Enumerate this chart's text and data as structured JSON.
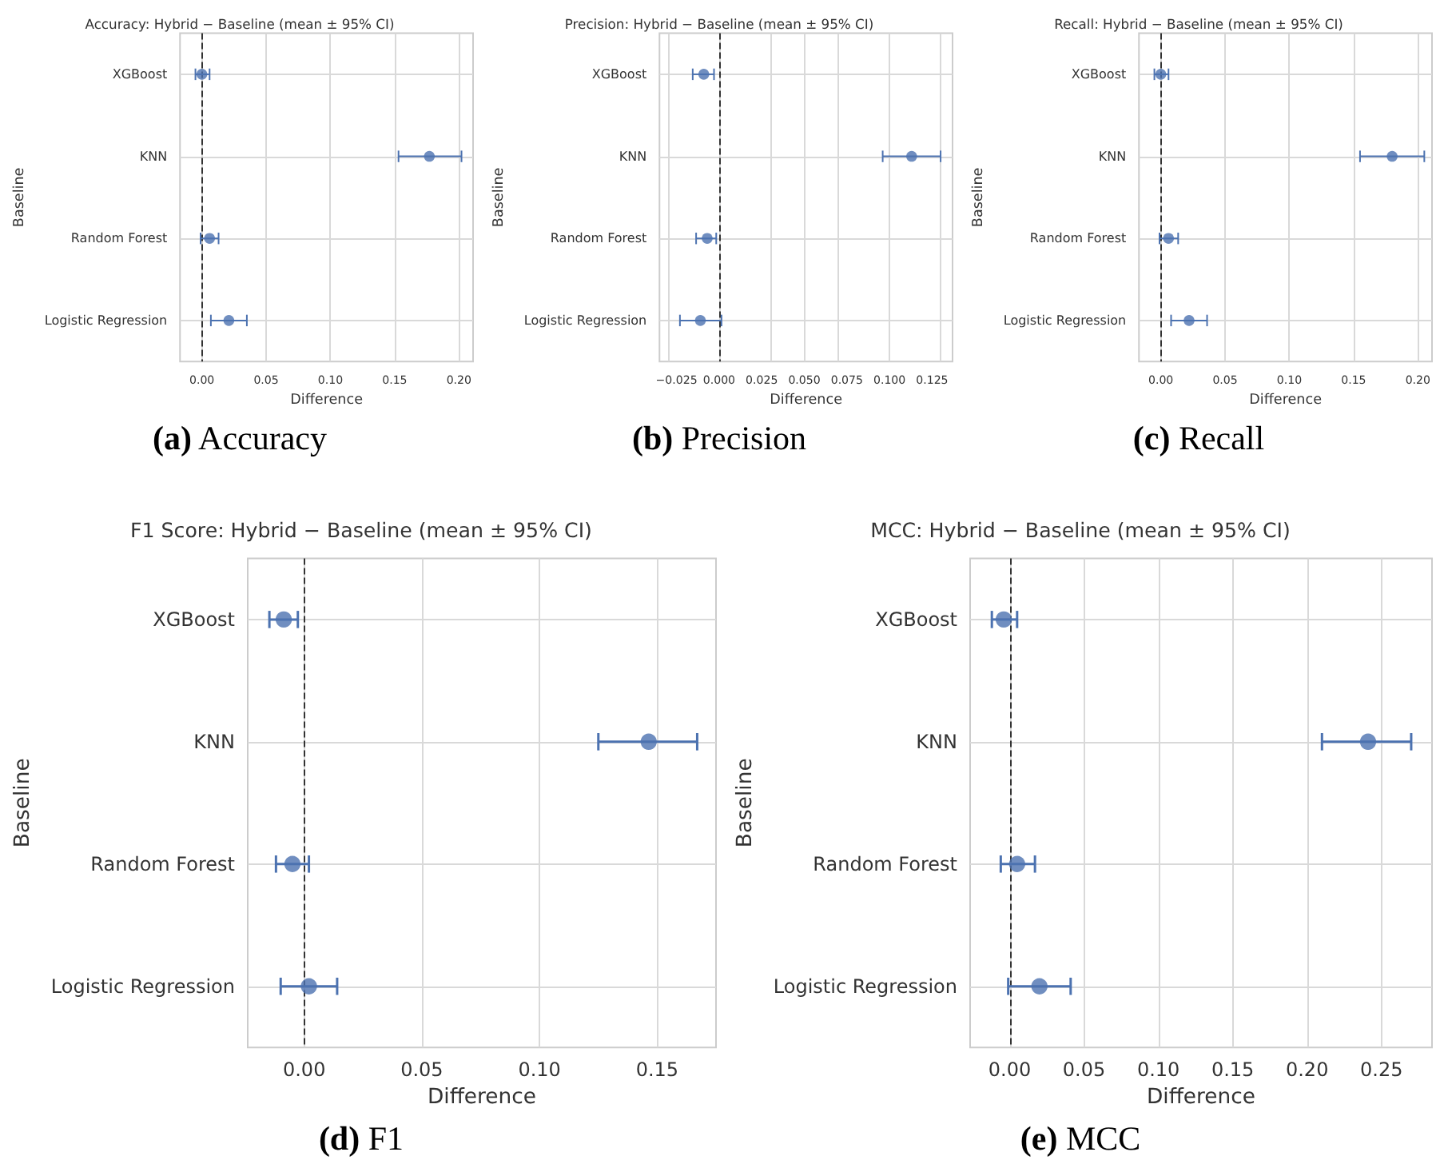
{
  "chart_data": [
    {
      "type": "scatter",
      "orientation": "horizontal",
      "title": "Accuracy: Hybrid − Baseline (mean ± 95% CI)",
      "xlabel": "Difference",
      "ylabel": "Baseline",
      "annotations": [
        "(a) Accuracy"
      ],
      "categories": [
        "XGBoost",
        "KNN",
        "Random Forest",
        "Logistic Regression"
      ],
      "values": [
        0.0,
        0.177,
        0.006,
        0.021
      ],
      "errors": [
        [
          -0.005,
          0.006
        ],
        [
          0.153,
          0.202
        ],
        [
          -0.001,
          0.013
        ],
        [
          0.007,
          0.035
        ]
      ],
      "color": "#4c72b0",
      "marker": "circle",
      "grid": true,
      "xlim": [
        -0.017,
        0.211
      ],
      "xticks": [
        {
          "value": 0,
          "label": "0.00"
        },
        0.05,
        {
          "value": 0.1,
          "label": "0.10"
        },
        0.15,
        {
          "value": 0.2,
          "label": "0.20"
        }
      ],
      "ref_lines": [
        {
          "axis": "x",
          "value": 0,
          "color": "#333333",
          "line_style": "dashed"
        }
      ]
    },
    {
      "type": "scatter",
      "orientation": "horizontal",
      "title": "Precision: Hybrid − Baseline (mean ± 95% CI)",
      "xlabel": "Difference",
      "ylabel": "Baseline",
      "annotations": [
        "(b) Precision"
      ],
      "categories": [
        "XGBoost",
        "KNN",
        "Random Forest",
        "Logistic Regression"
      ],
      "values": [
        -0.009,
        0.113,
        -0.007,
        -0.011
      ],
      "errors": [
        [
          -0.0155,
          -0.003
        ],
        [
          0.096,
          0.13
        ],
        [
          -0.0135,
          -0.0017
        ],
        [
          -0.023,
          0.0014
        ]
      ],
      "color": "#4c72b0",
      "marker": "circle",
      "grid": true,
      "xlim": [
        -0.035,
        0.137
      ],
      "xticks": [
        {
          "value": -0.025,
          "label": "−0.025"
        },
        {
          "value": 0,
          "label": "0.000"
        },
        0.025,
        {
          "value": 0.05,
          "label": "0.050"
        },
        0.075,
        {
          "value": 0.1,
          "label": "0.100"
        },
        0.125
      ],
      "ref_lines": [
        {
          "axis": "x",
          "value": 0,
          "color": "#333333",
          "line_style": "dashed"
        }
      ]
    },
    {
      "type": "scatter",
      "orientation": "horizontal",
      "title": "Recall: Hybrid − Baseline (mean ± 95% CI)",
      "xlabel": "Difference",
      "ylabel": "Baseline",
      "annotations": [
        "(c) Recall"
      ],
      "categories": [
        "XGBoost",
        "KNN",
        "Random Forest",
        "Logistic Regression"
      ],
      "values": [
        0.0,
        0.18,
        0.006,
        0.022
      ],
      "errors": [
        [
          -0.005,
          0.006
        ],
        [
          0.155,
          0.205
        ],
        [
          -0.001,
          0.0135
        ],
        [
          0.008,
          0.036
        ]
      ],
      "color": "#4c72b0",
      "marker": "circle",
      "grid": true,
      "xlim": [
        -0.017,
        0.211
      ],
      "xticks": [
        {
          "value": 0,
          "label": "0.00"
        },
        0.05,
        {
          "value": 0.1,
          "label": "0.10"
        },
        0.15,
        {
          "value": 0.2,
          "label": "0.20"
        }
      ],
      "ref_lines": [
        {
          "axis": "x",
          "value": 0,
          "color": "#333333",
          "line_style": "dashed"
        }
      ]
    },
    {
      "type": "scatter",
      "orientation": "horizontal",
      "title": "F1 Score: Hybrid − Baseline (mean ± 95% CI)",
      "xlabel": "Difference",
      "ylabel": "Baseline",
      "annotations": [
        "(d) F1"
      ],
      "categories": [
        "XGBoost",
        "KNN",
        "Random Forest",
        "Logistic Regression"
      ],
      "values": [
        -0.0087,
        0.1464,
        -0.005,
        0.002
      ],
      "errors": [
        [
          -0.0148,
          -0.0027
        ],
        [
          0.125,
          0.167
        ],
        [
          -0.012,
          0.002
        ],
        [
          -0.01,
          0.014
        ]
      ],
      "color": "#4c72b0",
      "marker": "circle",
      "grid": true,
      "xlim": [
        -0.024,
        0.175
      ],
      "xticks": [
        {
          "value": 0,
          "label": "0.00"
        },
        0.05,
        {
          "value": 0.1,
          "label": "0.10"
        },
        0.15
      ],
      "ref_lines": [
        {
          "axis": "x",
          "value": 0,
          "color": "#333333",
          "line_style": "dashed"
        }
      ]
    },
    {
      "type": "scatter",
      "orientation": "horizontal",
      "title": "MCC: Hybrid − Baseline (mean ± 95% CI)",
      "xlabel": "Difference",
      "ylabel": "Baseline",
      "annotations": [
        "(e) MCC"
      ],
      "categories": [
        "XGBoost",
        "KNN",
        "Random Forest",
        "Logistic Regression"
      ],
      "values": [
        -0.004,
        0.241,
        0.005,
        0.02
      ],
      "errors": [
        [
          -0.012,
          0.005
        ],
        [
          0.21,
          0.27
        ],
        [
          -0.006,
          0.017
        ],
        [
          -0.001,
          0.041
        ]
      ],
      "color": "#4c72b0",
      "marker": "circle",
      "grid": true,
      "xlim": [
        -0.0266,
        0.284
      ],
      "xticks": [
        {
          "value": 0,
          "label": "0.00"
        },
        0.05,
        {
          "value": 0.1,
          "label": "0.10"
        },
        0.15,
        {
          "value": 0.2,
          "label": "0.20"
        },
        0.25
      ],
      "ref_lines": [
        {
          "axis": "x",
          "value": 0,
          "color": "#333333",
          "line_style": "dashed"
        }
      ]
    }
  ]
}
